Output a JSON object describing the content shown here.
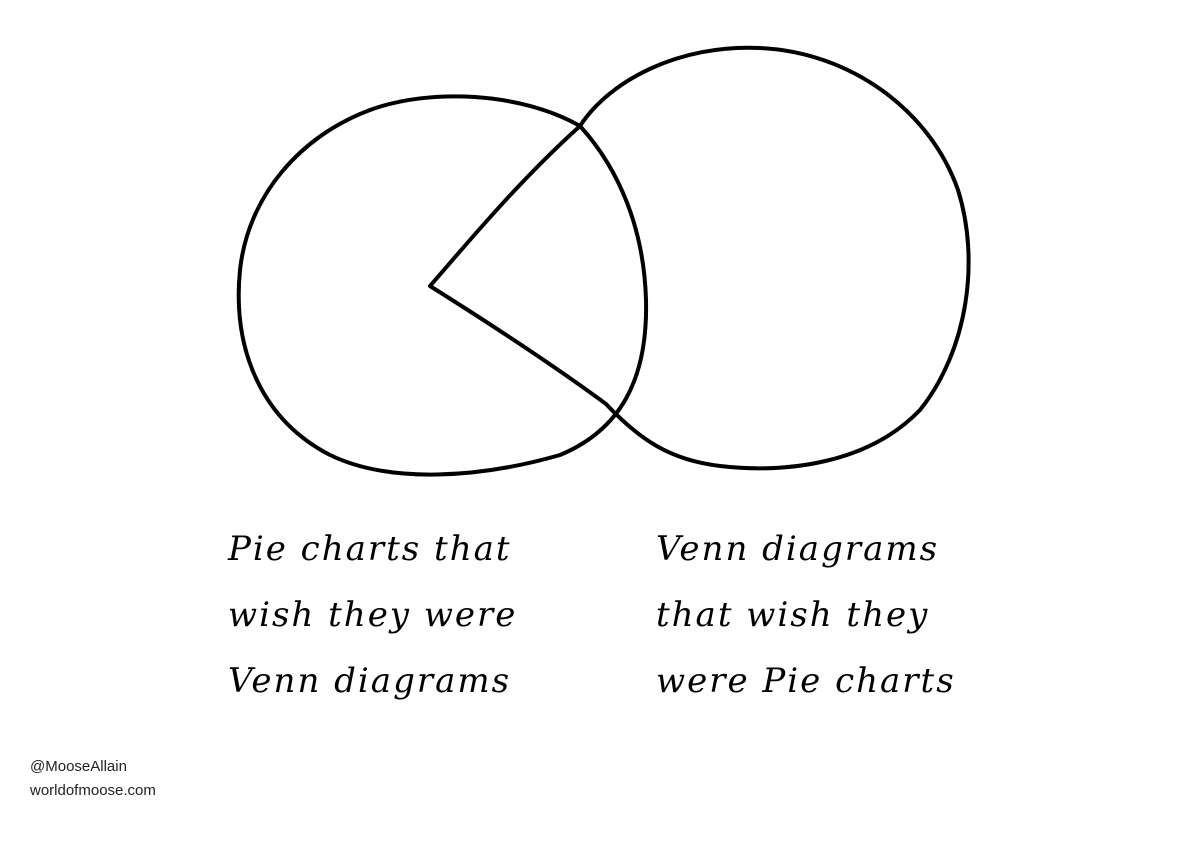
{
  "caption_left": {
    "line1": "Pie charts that",
    "line2": "wish they were",
    "line3": "Venn diagrams"
  },
  "caption_right": {
    "line1": "Venn diagrams",
    "line2": "that wish they",
    "line3": "were Pie charts"
  },
  "credit": {
    "handle": "@MooseAllain",
    "site": "worldofmoose.com"
  },
  "colors": {
    "ink": "#000000",
    "paper": "#ffffff"
  }
}
